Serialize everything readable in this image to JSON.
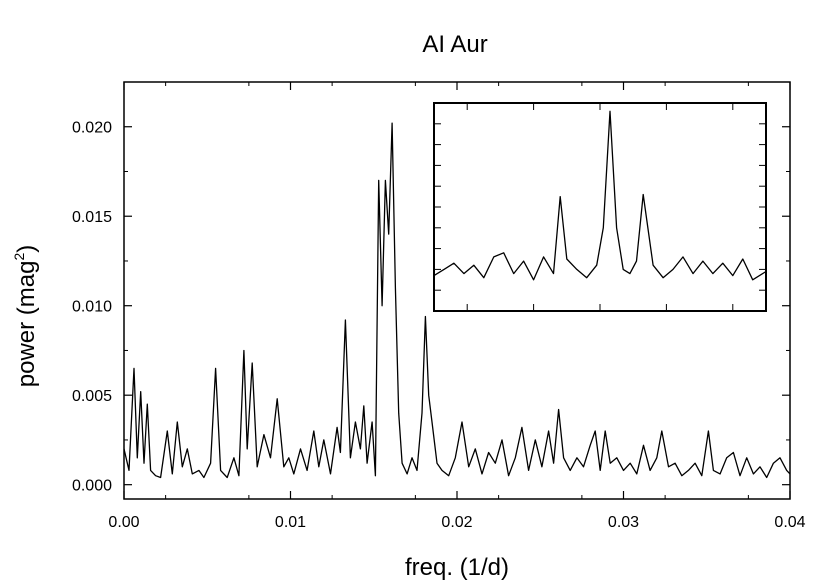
{
  "chart_data": [
    {
      "type": "line",
      "title": "AI Aur",
      "xlabel": "freq. (1/d)",
      "ylabel": "power (mag",
      "ylabel_superscript": "2",
      "ylabel_suffix": ")",
      "xlim": [
        0.0,
        0.04
      ],
      "ylim": [
        -0.0008,
        0.0225
      ],
      "x_ticks": [
        0.0,
        0.01,
        0.02,
        0.03,
        0.04
      ],
      "x_tick_labels": [
        "0.00",
        "0.01",
        "0.02",
        "0.03",
        "0.04"
      ],
      "y_ticks": [
        0.0,
        0.005,
        0.01,
        0.015,
        0.02
      ],
      "y_tick_labels": [
        "0.000",
        "0.005",
        "0.010",
        "0.015",
        "0.020"
      ],
      "grid": false,
      "line_color": "#000000",
      "series": [
        {
          "x": [
            0.0,
            0.0003,
            0.0006,
            0.0008,
            0.001,
            0.0012,
            0.0014,
            0.0016,
            0.0019,
            0.0022,
            0.0026,
            0.0029,
            0.0032,
            0.0035,
            0.0038,
            0.0041,
            0.0045,
            0.0048,
            0.0052,
            0.0055,
            0.0058,
            0.0062,
            0.0066,
            0.0069,
            0.0072,
            0.0074,
            0.0077,
            0.008,
            0.0084,
            0.0088,
            0.0092,
            0.0096,
            0.0099,
            0.0102,
            0.0106,
            0.011,
            0.0114,
            0.0117,
            0.012,
            0.0124,
            0.0128,
            0.013,
            0.0133,
            0.0136,
            0.0139,
            0.0142,
            0.0144,
            0.0146,
            0.0149,
            0.0151,
            0.0153,
            0.0155,
            0.0157,
            0.0159,
            0.0161,
            0.0163,
            0.0165,
            0.0167,
            0.017,
            0.0173,
            0.0176,
            0.0179,
            0.0181,
            0.0183,
            0.0185,
            0.0188,
            0.0191,
            0.0195,
            0.0199,
            0.0203,
            0.0207,
            0.0211,
            0.0215,
            0.0219,
            0.0223,
            0.0227,
            0.0231,
            0.0235,
            0.0239,
            0.0243,
            0.0247,
            0.0251,
            0.0255,
            0.0258,
            0.0261,
            0.0264,
            0.0268,
            0.0272,
            0.0276,
            0.028,
            0.0283,
            0.0286,
            0.0289,
            0.0292,
            0.0296,
            0.03,
            0.0304,
            0.0308,
            0.0312,
            0.0316,
            0.032,
            0.0323,
            0.0327,
            0.0331,
            0.0335,
            0.0339,
            0.0343,
            0.0347,
            0.0351,
            0.0354,
            0.0358,
            0.0362,
            0.0366,
            0.037,
            0.0374,
            0.0378,
            0.0382,
            0.0386,
            0.039,
            0.0394,
            0.0398,
            0.04
          ],
          "y": [
            0.002,
            0.0008,
            0.0065,
            0.0015,
            0.0052,
            0.0012,
            0.0045,
            0.0008,
            0.0005,
            0.0004,
            0.003,
            0.0006,
            0.0035,
            0.001,
            0.002,
            0.0006,
            0.0008,
            0.0004,
            0.0012,
            0.0065,
            0.0008,
            0.0004,
            0.0015,
            0.0005,
            0.0075,
            0.002,
            0.0068,
            0.001,
            0.0028,
            0.0015,
            0.0048,
            0.001,
            0.0015,
            0.0006,
            0.002,
            0.0008,
            0.003,
            0.001,
            0.0025,
            0.0006,
            0.0032,
            0.0018,
            0.0092,
            0.0015,
            0.0035,
            0.002,
            0.0044,
            0.0012,
            0.0035,
            0.0005,
            0.017,
            0.01,
            0.017,
            0.014,
            0.0202,
            0.011,
            0.004,
            0.0012,
            0.0006,
            0.0015,
            0.0008,
            0.004,
            0.0094,
            0.005,
            0.0035,
            0.0012,
            0.0008,
            0.0005,
            0.0015,
            0.0035,
            0.001,
            0.002,
            0.0006,
            0.0018,
            0.0012,
            0.0025,
            0.0005,
            0.0015,
            0.0032,
            0.0008,
            0.0025,
            0.001,
            0.003,
            0.0012,
            0.0042,
            0.0015,
            0.0008,
            0.0015,
            0.001,
            0.0022,
            0.003,
            0.0008,
            0.003,
            0.0012,
            0.0015,
            0.0008,
            0.0012,
            0.0006,
            0.0022,
            0.0008,
            0.0015,
            0.003,
            0.001,
            0.0012,
            0.0005,
            0.0008,
            0.0012,
            0.0005,
            0.003,
            0.0008,
            0.0006,
            0.0015,
            0.0018,
            0.0005,
            0.0015,
            0.0006,
            0.001,
            0.0004,
            0.0012,
            0.0015,
            0.0008,
            0.0006
          ]
        }
      ]
    },
    {
      "type": "line",
      "title": "",
      "xlabel": "",
      "ylabel": "",
      "grid": false,
      "line_color": "#000000",
      "inset": true,
      "xlim": [
        0,
        1
      ],
      "ylim": [
        0,
        1
      ],
      "x_tick_count": 5,
      "y_tick_count": 9,
      "series": [
        {
          "x": [
            0.0,
            0.03,
            0.06,
            0.09,
            0.12,
            0.15,
            0.18,
            0.21,
            0.24,
            0.27,
            0.3,
            0.33,
            0.36,
            0.38,
            0.4,
            0.43,
            0.46,
            0.49,
            0.51,
            0.53,
            0.55,
            0.57,
            0.59,
            0.61,
            0.63,
            0.66,
            0.69,
            0.72,
            0.75,
            0.78,
            0.81,
            0.84,
            0.87,
            0.9,
            0.93,
            0.96,
            1.0
          ],
          "y": [
            0.17,
            0.2,
            0.23,
            0.18,
            0.22,
            0.16,
            0.26,
            0.28,
            0.18,
            0.24,
            0.15,
            0.26,
            0.18,
            0.55,
            0.25,
            0.2,
            0.16,
            0.22,
            0.4,
            0.96,
            0.4,
            0.2,
            0.18,
            0.24,
            0.56,
            0.22,
            0.16,
            0.2,
            0.26,
            0.18,
            0.24,
            0.18,
            0.23,
            0.17,
            0.25,
            0.15,
            0.19
          ]
        }
      ]
    }
  ]
}
